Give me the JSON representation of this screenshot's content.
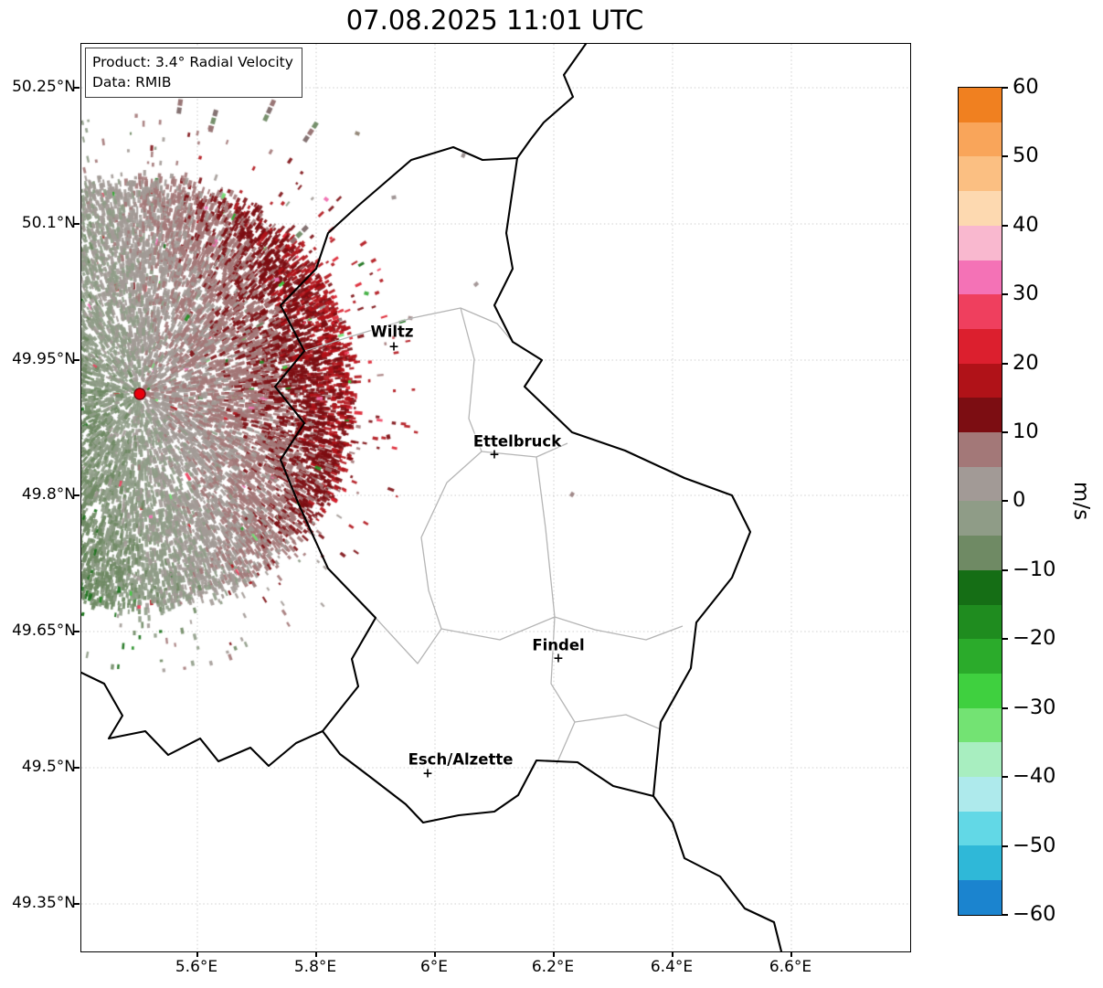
{
  "title": "07.08.2025 11:01 UTC",
  "info_box": {
    "product": "Product: 3.4° Radial Velocity",
    "data_source": "Data: RMIB"
  },
  "axes": {
    "lat_ticks": [
      "50.25°N",
      "50.1°N",
      "49.95°N",
      "49.8°N",
      "49.65°N",
      "49.5°N",
      "49.35°N"
    ],
    "lon_ticks": [
      "5.6°E",
      "5.8°E",
      "6°E",
      "6.2°E",
      "6.4°E",
      "6.6°E"
    ]
  },
  "cities": [
    {
      "name": "Wiltz"
    },
    {
      "name": "Ettelbruck"
    },
    {
      "name": "Findel"
    },
    {
      "name": "Esch/Alzette"
    }
  ],
  "map": {
    "country_border_color": "#000000",
    "district_border_color": "#b5b5b5",
    "grid_color": "#d0d0d0",
    "radar_dot_color": "#e8000b",
    "city_marker_glyph": "+"
  },
  "colorbar": {
    "unit_label": "m/s",
    "min": -60,
    "max": 60,
    "tick_labels": [
      "60",
      "50",
      "40",
      "30",
      "20",
      "10",
      "0",
      "−10",
      "−20",
      "−30",
      "−40",
      "−50",
      "−60"
    ],
    "segments": [
      {
        "from": 60,
        "to": 55,
        "color": "#f08020"
      },
      {
        "from": 55,
        "to": 50,
        "color": "#f9a55a"
      },
      {
        "from": 50,
        "to": 45,
        "color": "#fbbf82"
      },
      {
        "from": 45,
        "to": 40,
        "color": "#fdd9b0"
      },
      {
        "from": 40,
        "to": 35,
        "color": "#f9b8cf"
      },
      {
        "from": 35,
        "to": 30,
        "color": "#f472b6"
      },
      {
        "from": 30,
        "to": 25,
        "color": "#ef3f5e"
      },
      {
        "from": 25,
        "to": 20,
        "color": "#dc1f2e"
      },
      {
        "from": 20,
        "to": 15,
        "color": "#b01218"
      },
      {
        "from": 15,
        "to": 10,
        "color": "#7c0d12"
      },
      {
        "from": 10,
        "to": 5,
        "color": "#a37878"
      },
      {
        "from": 5,
        "to": 0,
        "color": "#a29a96"
      },
      {
        "from": 0,
        "to": -5,
        "color": "#8f9c87"
      },
      {
        "from": -5,
        "to": -10,
        "color": "#6f8a64"
      },
      {
        "from": -10,
        "to": -15,
        "color": "#156e15"
      },
      {
        "from": -15,
        "to": -20,
        "color": "#1f8c1f"
      },
      {
        "from": -20,
        "to": -25,
        "color": "#2bab2b"
      },
      {
        "from": -25,
        "to": -30,
        "color": "#3fd03f"
      },
      {
        "from": -30,
        "to": -35,
        "color": "#73e373"
      },
      {
        "from": -35,
        "to": -40,
        "color": "#a8eec0"
      },
      {
        "from": -40,
        "to": -45,
        "color": "#aeeaec"
      },
      {
        "from": -45,
        "to": -50,
        "color": "#62d8e6"
      },
      {
        "from": -50,
        "to": -55,
        "color": "#2fb8d8"
      },
      {
        "from": -55,
        "to": -60,
        "color": "#1b84cf"
      }
    ]
  },
  "chart_data": {
    "type": "heatmap",
    "title": "07.08.2025 11:01 UTC",
    "product": "3.4° Radial Velocity",
    "data_source": "RMIB",
    "units": "m/s",
    "colorbar_range": [
      -60,
      60
    ],
    "lat_ticks_deg_n": [
      50.25,
      50.1,
      49.95,
      49.8,
      49.65,
      49.5,
      49.35
    ],
    "lon_ticks_deg_e": [
      5.6,
      5.8,
      6.0,
      6.2,
      6.4,
      6.6
    ],
    "cities": [
      "Wiltz",
      "Ettelbruck",
      "Findel",
      "Esch/Alzette"
    ],
    "legend_position": "right"
  }
}
